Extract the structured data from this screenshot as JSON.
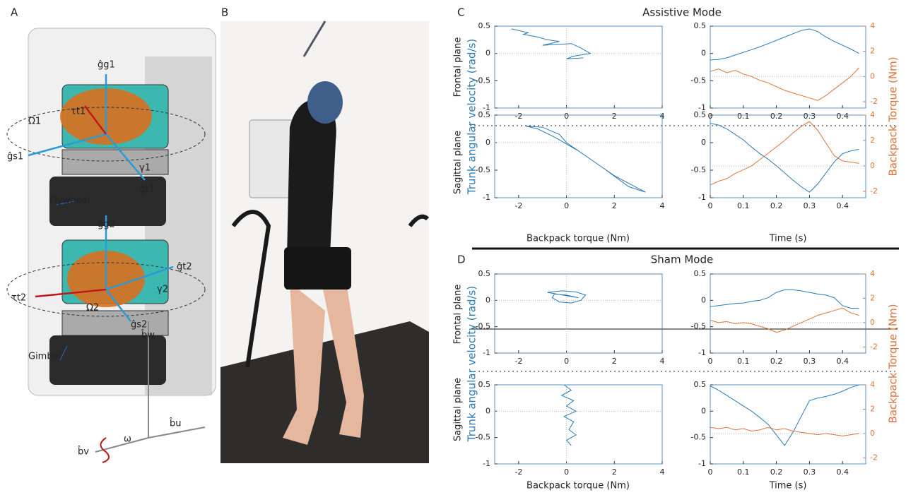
{
  "panel_letters": [
    "A",
    "B"
  ],
  "panel_a": {
    "labels": [
      "ĝg1",
      "τt1",
      "Ω1",
      "ĝs1",
      "γ1",
      "ĝt1",
      "ĝg2",
      "Flywheel",
      "ĝt2",
      "τt2",
      "γ2",
      "Ω2",
      "ĝs2",
      "Gimbal",
      "b̂w",
      "b̂v",
      "ω",
      "b̂u"
    ]
  },
  "sections": [
    {
      "letter": "C",
      "title": "Assistive Mode",
      "row_labels": [
        "Frontal plane",
        "Sagittal plane"
      ],
      "ylabel": "Trunk angular velocity (rad/s)",
      "y2label": "Backpack Torque (Nm)",
      "xlabels": [
        "Backpack torque (Nm)",
        "Time (s)"
      ]
    },
    {
      "letter": "D",
      "title": "Sham Mode",
      "row_labels": [
        "Frontal plane",
        "Sagittal plane"
      ],
      "ylabel": "Trunk angular velocity (rad/s)",
      "y2label": "Backpack Torque (Nm)",
      "xlabels": [
        "Backpack torque (Nm)",
        "Time (s)"
      ]
    }
  ],
  "chart_data": [
    {
      "type": "line",
      "x": [
        -2.3,
        -2.0,
        -1.6,
        -1.8,
        -1.2,
        -0.8,
        -0.3,
        -1.0,
        0.2,
        0.6,
        1.0,
        0.3,
        0.0,
        0.7
      ],
      "series": [
        {
          "color": "#2a7ab8",
          "values": [
            0.45,
            0.42,
            0.38,
            0.35,
            0.3,
            0.25,
            0.22,
            0.15,
            0.18,
            0.1,
            0.0,
            -0.05,
            -0.1,
            -0.08
          ]
        }
      ],
      "xlim": [
        -3,
        4
      ],
      "xticks": [
        -2,
        0,
        2,
        4
      ],
      "ylim": [
        -1,
        0.5
      ],
      "yticks": [
        -1,
        -0.5,
        0,
        0.5
      ]
    },
    {
      "type": "dual",
      "x": [
        0,
        0.025,
        0.05,
        0.075,
        0.1,
        0.125,
        0.15,
        0.175,
        0.2,
        0.225,
        0.25,
        0.275,
        0.3,
        0.325,
        0.35,
        0.375,
        0.4,
        0.425,
        0.45
      ],
      "series": [
        {
          "color": "#2a7ab8",
          "values": [
            -0.12,
            -0.11,
            -0.08,
            -0.03,
            0.02,
            0.07,
            0.12,
            0.18,
            0.24,
            0.3,
            0.36,
            0.42,
            0.45,
            0.4,
            0.3,
            0.22,
            0.15,
            0.08,
            0.0
          ]
        },
        {
          "color": "#e0733a",
          "axis": "y2",
          "values": [
            0.4,
            0.6,
            0.3,
            0.5,
            0.2,
            0.0,
            -0.3,
            -0.5,
            -0.8,
            -1.1,
            -1.3,
            -1.5,
            -1.7,
            -1.9,
            -1.5,
            -1.0,
            -0.5,
            0.0,
            0.7
          ]
        }
      ],
      "xlim": [
        0,
        0.47
      ],
      "xticks": [
        0,
        0.1,
        0.2,
        0.3,
        0.4
      ],
      "ylim": [
        -1,
        0.5
      ],
      "yticks": [
        -1,
        -0.5,
        0,
        0.5
      ],
      "y2lim": [
        -2.5,
        4
      ],
      "y2ticks": [
        -2,
        0,
        2,
        4
      ]
    },
    {
      "type": "line",
      "x": [
        -1.7,
        -1.0,
        -0.3,
        0.0,
        1.0,
        2.0,
        3.3,
        2.6,
        1.5,
        0.5,
        -0.5,
        -1.2,
        -1.7
      ],
      "series": [
        {
          "color": "#2a7ab8",
          "values": [
            0.3,
            0.28,
            0.15,
            0.0,
            -0.3,
            -0.6,
            -0.9,
            -0.8,
            -0.45,
            -0.15,
            0.1,
            0.25,
            0.3
          ]
        }
      ],
      "xlim": [
        -3,
        4
      ],
      "xticks": [
        -2,
        0,
        2,
        4
      ],
      "ylim": [
        -1,
        0.5
      ],
      "yticks": [
        -1,
        -0.5,
        0,
        0.5
      ]
    },
    {
      "type": "dual",
      "x": [
        0,
        0.025,
        0.05,
        0.075,
        0.1,
        0.125,
        0.15,
        0.175,
        0.2,
        0.225,
        0.25,
        0.275,
        0.3,
        0.325,
        0.35,
        0.375,
        0.4,
        0.425,
        0.45
      ],
      "series": [
        {
          "color": "#2a7ab8",
          "values": [
            0.35,
            0.32,
            0.25,
            0.15,
            0.05,
            -0.08,
            -0.2,
            -0.3,
            -0.42,
            -0.55,
            -0.68,
            -0.8,
            -0.9,
            -0.75,
            -0.55,
            -0.35,
            -0.2,
            -0.15,
            -0.12
          ]
        },
        {
          "color": "#e0733a",
          "axis": "y2",
          "values": [
            -1.5,
            -1.2,
            -1.0,
            -0.6,
            -0.3,
            0.0,
            0.5,
            1.0,
            1.5,
            2.0,
            2.6,
            3.1,
            3.5,
            2.8,
            1.8,
            0.8,
            0.4,
            0.3,
            0.2
          ]
        }
      ],
      "xlim": [
        0,
        0.47
      ],
      "xticks": [
        0,
        0.1,
        0.2,
        0.3,
        0.4
      ],
      "ylim": [
        -1,
        0.5
      ],
      "yticks": [
        -1,
        -0.5,
        0,
        0.5
      ],
      "y2lim": [
        -2.5,
        4
      ],
      "y2ticks": [
        -2,
        0,
        2,
        4
      ]
    },
    {
      "type": "line",
      "x": [
        -0.8,
        -0.2,
        0.4,
        0.8,
        0.6,
        0.2,
        -0.3,
        -0.6,
        -0.5,
        0.0,
        0.5,
        -0.8
      ],
      "series": [
        {
          "color": "#2a7ab8",
          "values": [
            0.15,
            0.18,
            0.16,
            0.1,
            0.0,
            -0.05,
            -0.03,
            0.05,
            0.12,
            0.1,
            0.05,
            0.15
          ]
        }
      ],
      "xlim": [
        -3,
        4
      ],
      "xticks": [
        -2,
        0,
        2,
        4
      ],
      "ylim": [
        -1,
        0.5
      ],
      "yticks": [
        -1,
        -0.5,
        0,
        0.5
      ]
    },
    {
      "type": "dual",
      "x": [
        0,
        0.025,
        0.05,
        0.075,
        0.1,
        0.125,
        0.15,
        0.175,
        0.2,
        0.225,
        0.25,
        0.275,
        0.3,
        0.325,
        0.35,
        0.375,
        0.4,
        0.425,
        0.45
      ],
      "series": [
        {
          "color": "#2a7ab8",
          "values": [
            -0.12,
            -0.1,
            -0.08,
            -0.06,
            -0.05,
            -0.02,
            0.0,
            0.05,
            0.15,
            0.2,
            0.2,
            0.18,
            0.15,
            0.12,
            0.1,
            0.05,
            -0.1,
            -0.15,
            -0.15
          ]
        },
        {
          "color": "#e0733a",
          "axis": "y2",
          "values": [
            0.2,
            0.0,
            0.1,
            -0.1,
            0.0,
            -0.1,
            -0.3,
            -0.5,
            -0.8,
            -0.6,
            -0.3,
            0.0,
            0.3,
            0.6,
            0.8,
            1.0,
            1.2,
            0.8,
            0.6
          ]
        }
      ],
      "xlim": [
        0,
        0.47
      ],
      "xticks": [
        0,
        0.1,
        0.2,
        0.3,
        0.4
      ],
      "ylim": [
        -1,
        0.5
      ],
      "yticks": [
        -1,
        -0.5,
        0,
        0.5
      ],
      "y2lim": [
        -2.5,
        4
      ],
      "y2ticks": [
        -2,
        0,
        2,
        4
      ]
    },
    {
      "type": "line",
      "x": [
        -0.1,
        0.2,
        -0.2,
        0.3,
        0.0,
        0.4,
        -0.1,
        0.3,
        0.1,
        0.4,
        0.0,
        0.2
      ],
      "series": [
        {
          "color": "#2a7ab8",
          "values": [
            0.5,
            0.4,
            0.3,
            0.2,
            0.1,
            0.0,
            -0.1,
            -0.2,
            -0.35,
            -0.45,
            -0.55,
            -0.65
          ]
        }
      ],
      "xlim": [
        -3,
        4
      ],
      "xticks": [
        -2,
        0,
        2,
        4
      ],
      "ylim": [
        -1,
        0.5
      ],
      "yticks": [
        -1,
        -0.5,
        0,
        0.5
      ]
    },
    {
      "type": "dual",
      "x": [
        0,
        0.025,
        0.05,
        0.075,
        0.1,
        0.125,
        0.15,
        0.175,
        0.2,
        0.225,
        0.25,
        0.275,
        0.3,
        0.325,
        0.35,
        0.375,
        0.4,
        0.425,
        0.45
      ],
      "series": [
        {
          "color": "#2a7ab8",
          "values": [
            0.48,
            0.4,
            0.3,
            0.2,
            0.1,
            0.0,
            -0.12,
            -0.25,
            -0.45,
            -0.65,
            -0.4,
            -0.1,
            0.2,
            0.25,
            0.28,
            0.32,
            0.38,
            0.45,
            0.5
          ]
        },
        {
          "color": "#e0733a",
          "axis": "y2",
          "values": [
            0.5,
            0.4,
            0.5,
            0.3,
            0.4,
            0.2,
            0.3,
            0.5,
            0.3,
            0.4,
            0.2,
            0.1,
            0.0,
            -0.1,
            0.0,
            -0.1,
            -0.2,
            -0.1,
            0.0
          ]
        }
      ],
      "xlim": [
        0,
        0.47
      ],
      "xticks": [
        0,
        0.1,
        0.2,
        0.3,
        0.4
      ],
      "ylim": [
        -1,
        0.5
      ],
      "yticks": [
        -1,
        -0.5,
        0,
        0.5
      ],
      "y2lim": [
        -2.5,
        4
      ],
      "y2ticks": [
        -2,
        0,
        2,
        4
      ]
    }
  ]
}
